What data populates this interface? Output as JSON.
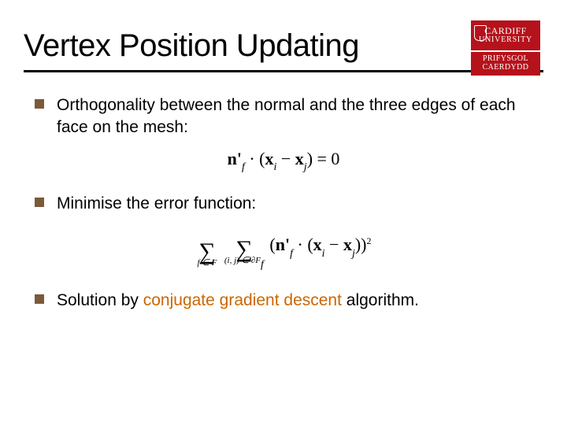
{
  "title": "Vertex Position Updating",
  "logo": {
    "top_line1": "CARDIFF",
    "top_line2": "UNIVERSITY",
    "bot_line1": "PRIFYSGOL",
    "bot_line2": "CAERDYDD",
    "bg_color": "#b5121b",
    "text_color": "#ffffff"
  },
  "bullets": [
    {
      "text": "Orthogonality between the normal and the three edges of each face on the mesh:",
      "formula_html": "<span class='bold'>n'</span><sub><i>f</i></sub> &middot; (<span class='bold'>x</span><sub><i>i</i></sub> &minus; <span class='bold'>x</span><sub><i>j</i></sub>) = 0"
    },
    {
      "text": "Minimise the error function:",
      "formula_html": "<span class='sumwrap'><span class='sumlimits'>&nbsp;</span><span class='sum'>&sum;</span><span class='sumlimits'>f &isin; F</span></span> <span class='sumwrap'><span class='sumlimits'>&nbsp;</span><span class='sum'>&sum;</span><span class='sumlimits'>(i, j) &isin; &part;F<sub>f</sub></span></span> (<span class='bold'>n'</span><sub><i>f</i></sub> &middot; (<span class='bold'>x</span><sub><i>i</i></sub> &minus; <span class='bold'>x</span><sub><i>j</i></sub>))<sup style='font-size:12px'>2</sup>"
    },
    {
      "text_html": "Solution by <span class='hl'>conjugate gradient descent</span> algorithm."
    }
  ],
  "styles": {
    "bullet_color": "#7b5a3a",
    "highlight_color": "#cc6600",
    "title_fontsize": 40,
    "body_fontsize": 21,
    "background": "#ffffff",
    "underline_color": "#000000"
  }
}
